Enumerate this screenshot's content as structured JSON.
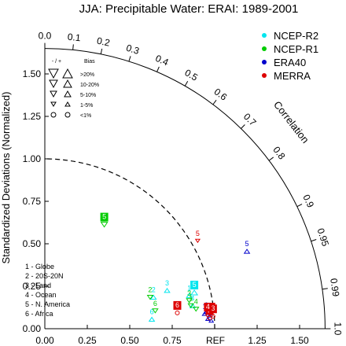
{
  "title": "JJA: Precipitable Water: ERAI: 1989-2001",
  "y_axis_title": "Standardized Deviations (Normalized)",
  "correlation_title": "Correlation",
  "ref_label": "REF",
  "x_tick_labels": [
    "0.00",
    "0.25",
    "0.50",
    "0.75",
    "1.25",
    "1.50"
  ],
  "y_tick_labels": [
    "0.00",
    "0.25",
    "0.50",
    "0.75",
    "1.00",
    "1.25",
    "1.50"
  ],
  "corr_tick_labels": [
    "0.0",
    "0.1",
    "0.2",
    "0.3",
    "0.4",
    "0.5",
    "0.6",
    "0.7",
    "0.8",
    "0.9",
    "0.95",
    "0.99",
    "1.0"
  ],
  "bias_legend": {
    "header_sign": "- / +",
    "header_bias": "Bias",
    "rows": [
      ">20%",
      "10-20%",
      "5-10%",
      "1-5%",
      "<1%"
    ]
  },
  "region_legend": [
    "1 - Globe",
    "2 - 20S-20N",
    "3 - Land",
    "4 - Ocean",
    "5 - N. America",
    "6 - Africa"
  ],
  "colors": {
    "NCEP-R2": "#00e5ee",
    "NCEP-R1": "#00cc00",
    "ERA40": "#0000cc",
    "MERRA": "#dd0000"
  },
  "chart_data": {
    "type": "scatter",
    "polar": "taylor",
    "r_range": [
      0,
      1.65
    ],
    "reference_sd": 1.0,
    "correlation_ticks": [
      0.0,
      0.1,
      0.2,
      0.3,
      0.4,
      0.5,
      0.6,
      0.7,
      0.8,
      0.9,
      0.95,
      0.99,
      1.0
    ],
    "series": [
      {
        "name": "NCEP-R2",
        "points": [
          {
            "region": "1",
            "x": 0.85,
            "y": 0.23,
            "bias": "5-10%",
            "dir": "+",
            "fill": false
          },
          {
            "region": "2",
            "x": 0.64,
            "y": 0.22,
            "bias": "5-10%",
            "dir": "+",
            "fill": false
          },
          {
            "region": "3",
            "x": 0.72,
            "y": 0.26,
            "bias": "5-10%",
            "dir": "+",
            "fill": false
          },
          {
            "region": "4",
            "x": 0.87,
            "y": 0.17,
            "bias": "5-10%",
            "dir": "+",
            "fill": false
          },
          {
            "region": "5",
            "x": 0.88,
            "y": 0.25,
            "bias": "10-20%",
            "dir": "+",
            "fill": true
          },
          {
            "region": "6",
            "x": 0.63,
            "y": 0.09,
            "bias": "5-10%",
            "dir": "+",
            "fill": false
          }
        ]
      },
      {
        "name": "NCEP-R1",
        "points": [
          {
            "region": "1",
            "x": 0.86,
            "y": 0.17,
            "bias": "5-10%",
            "dir": "-",
            "fill": false
          },
          {
            "region": "2",
            "x": 0.62,
            "y": 0.22,
            "bias": "5-10%",
            "dir": "-",
            "fill": false
          },
          {
            "region": "3",
            "x": 0.85,
            "y": 0.2,
            "bias": "5-10%",
            "dir": "-",
            "fill": false
          },
          {
            "region": "4",
            "x": 0.89,
            "y": 0.15,
            "bias": "5-10%",
            "dir": "-",
            "fill": false
          },
          {
            "region": "5",
            "x": 0.35,
            "y": 0.65,
            "bias": "10-20%",
            "dir": "-",
            "fill": true
          },
          {
            "region": "6",
            "x": 0.65,
            "y": 0.14,
            "bias": "5-10%",
            "dir": "-",
            "fill": false
          }
        ]
      },
      {
        "name": "ERA40",
        "points": [
          {
            "region": "1",
            "x": 0.94,
            "y": 0.12,
            "bias": "1-5%",
            "dir": "+",
            "fill": false
          },
          {
            "region": "2",
            "x": 0.96,
            "y": 0.09,
            "bias": "1-5%",
            "dir": "+",
            "fill": false
          },
          {
            "region": "3",
            "x": 0.97,
            "y": 0.11,
            "bias": "1-5%",
            "dir": "+",
            "fill": false
          },
          {
            "region": "4",
            "x": 0.98,
            "y": 0.08,
            "bias": "1-5%",
            "dir": "+",
            "fill": false
          },
          {
            "region": "5",
            "x": 1.19,
            "y": 0.49,
            "bias": "5-10%",
            "dir": "+",
            "fill": false
          },
          {
            "region": "6",
            "x": 0.95,
            "y": 0.13,
            "bias": "1-5%",
            "dir": "+",
            "fill": false
          }
        ]
      },
      {
        "name": "MERRA",
        "points": [
          {
            "region": "1",
            "x": 0.98,
            "y": 0.12,
            "bias": "<1%",
            "dir": "+",
            "fill": true
          },
          {
            "region": "2",
            "x": 0.97,
            "y": 0.1,
            "bias": "<1%",
            "dir": "+",
            "fill": true
          },
          {
            "region": "3",
            "x": 0.99,
            "y": 0.11,
            "bias": "<1%",
            "dir": "+",
            "fill": true
          },
          {
            "region": "4",
            "x": 0.96,
            "y": 0.12,
            "bias": "<1%",
            "dir": "+",
            "fill": true
          },
          {
            "region": "5",
            "x": 0.9,
            "y": 0.55,
            "bias": "1-5%",
            "dir": "-",
            "fill": false
          },
          {
            "region": "6",
            "x": 0.78,
            "y": 0.13,
            "bias": "<1%",
            "dir": "+",
            "fill": true
          }
        ]
      }
    ]
  }
}
